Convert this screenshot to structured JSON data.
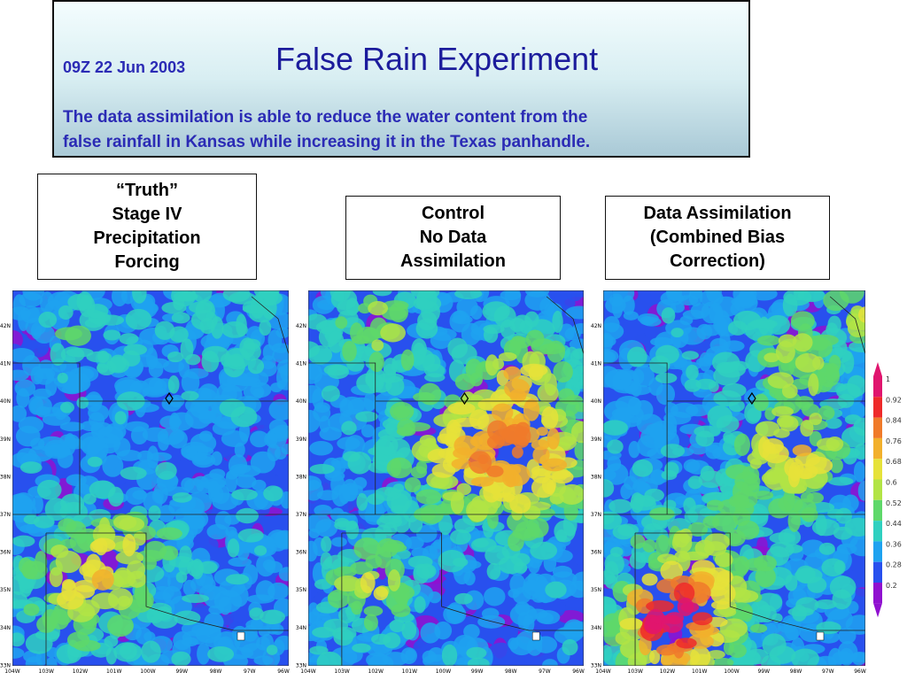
{
  "header": {
    "date": "09Z 22 Jun 2003",
    "title": "False Rain Experiment",
    "description": [
      "The data assimilation is able to reduce the water content from the",
      "false rainfall in Kansas while increasing it in the Texas panhandle."
    ]
  },
  "panels": [
    {
      "label": [
        "“Truth”",
        "Stage IV",
        "Precipitation",
        "Forcing"
      ]
    },
    {
      "label": [
        "Control",
        "No Data",
        "Assimilation"
      ]
    },
    {
      "label": [
        "Data Assimilation",
        "(Combined Bias",
        "Correction)"
      ]
    }
  ],
  "map_axes": {
    "latitudes": [
      "42N",
      "41N",
      "40N",
      "39N",
      "38N",
      "37N",
      "36N",
      "35N",
      "34N",
      "33N"
    ],
    "longitudes": [
      "104W",
      "103W",
      "102W",
      "101W",
      "100W",
      "99W",
      "98W",
      "97W",
      "96W"
    ]
  },
  "colorbar": {
    "levels": [
      1,
      0.92,
      0.84,
      0.76,
      0.68,
      0.6,
      0.52,
      0.44,
      0.36,
      0.28,
      0.2
    ],
    "colors": [
      "#e0156e",
      "#ee2a2a",
      "#f07a2a",
      "#f2b02c",
      "#e6e23a",
      "#b2e445",
      "#5ed86a",
      "#2fd0c0",
      "#1ea2f0",
      "#2850ee",
      "#9010d0"
    ]
  }
}
